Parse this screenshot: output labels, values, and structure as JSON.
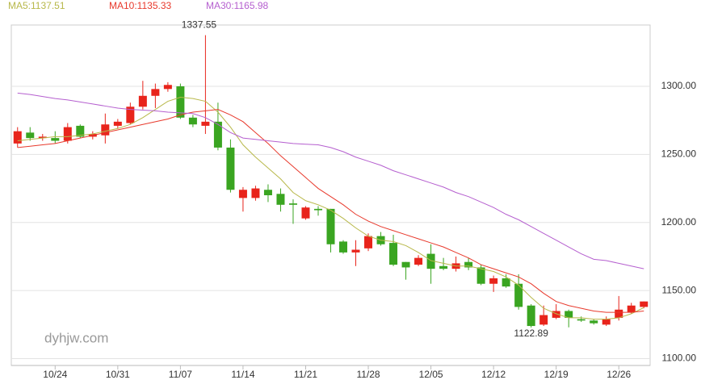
{
  "chart_data": {
    "type": "candlestick",
    "watermark": "dyhjw.com",
    "categories": [
      null,
      null,
      null,
      "10/24",
      null,
      null,
      null,
      null,
      "10/31",
      null,
      null,
      null,
      null,
      "11/07",
      null,
      null,
      null,
      null,
      "11/14",
      null,
      null,
      null,
      null,
      "11/21",
      null,
      null,
      null,
      null,
      "11/28",
      null,
      null,
      null,
      null,
      "12/05",
      null,
      null,
      null,
      null,
      "12/12",
      null,
      null,
      null,
      null,
      "12/19",
      null,
      null,
      null,
      null,
      "12/26",
      null,
      null
    ],
    "open": [
      1258,
      1266,
      1262,
      1262,
      1260,
      1271,
      1263,
      1264,
      1271,
      1273,
      1285,
      1293,
      1298,
      1300,
      1277,
      1271,
      1274,
      1255,
      1218,
      1218,
      1224,
      1221,
      1214,
      1203,
      1210,
      1210,
      1186,
      1178,
      1181,
      1190,
      1185,
      1171,
      1169,
      1177,
      1168,
      1166,
      1171,
      1167,
      1155,
      1159,
      1155,
      1139,
      1125,
      1130,
      1135,
      1129,
      1128,
      1125,
      1130,
      1134,
      1138
    ],
    "high": [
      1270,
      1270,
      1265,
      1267,
      1273,
      1272,
      1267,
      1280,
      1276,
      1288,
      1304,
      1302,
      1303,
      1302,
      1279,
      1337.55,
      1288,
      1261,
      1226,
      1227,
      1228,
      1225,
      1217,
      1212,
      1212,
      1210,
      1187,
      1187,
      1192,
      1193,
      1191,
      1171,
      1176,
      1184,
      1174,
      1175,
      1174,
      1169,
      1161,
      1162,
      1162,
      1140,
      1139,
      1140,
      1136,
      1131,
      1129,
      1131,
      1146,
      1141,
      1142
    ],
    "low": [
      1255,
      1260,
      1260,
      1258,
      1258,
      1262,
      1261,
      1258,
      1269,
      1272,
      1283,
      1284,
      1296,
      1276,
      1270,
      1265,
      1253,
      1222,
      1208,
      1216,
      1215,
      1208,
      1199,
      1202,
      1205,
      1178,
      1177,
      1168,
      1179,
      1183,
      1168,
      1158,
      1168,
      1155,
      1165,
      1164,
      1165,
      1154,
      1149,
      1152,
      1136,
      1122.89,
      1124,
      1129,
      1123,
      1127,
      1125,
      1124,
      1128,
      1133,
      1137
    ],
    "close": [
      1267,
      1262,
      1263,
      1260,
      1270,
      1263,
      1265,
      1272,
      1274,
      1285,
      1293,
      1298,
      1301,
      1277,
      1272,
      1274,
      1255,
      1224,
      1224,
      1225,
      1220,
      1213,
      1213,
      1211,
      1209,
      1184,
      1178,
      1180,
      1190,
      1184,
      1169,
      1167,
      1174,
      1166,
      1166,
      1170,
      1167,
      1155,
      1159,
      1153,
      1138,
      1124,
      1132,
      1135,
      1130,
      1128,
      1126,
      1129,
      1136,
      1139,
      1142
    ],
    "up_color": "#e8241b",
    "down_color": "#3aa521",
    "series": [
      {
        "name": "MA5:1137.51",
        "color": "#b8b84a",
        "values": [
          1260,
          1261,
          1262,
          1263,
          1263,
          1264,
          1265,
          1267,
          1269,
          1272,
          1277,
          1283,
          1289,
          1292,
          1291,
          1289,
          1281,
          1270,
          1257,
          1248,
          1240,
          1232,
          1222,
          1216,
          1213,
          1209,
          1203,
          1196,
          1190,
          1187,
          1186,
          1183,
          1178,
          1172,
          1170,
          1168,
          1168,
          1166,
          1164,
          1160,
          1154,
          1145,
          1137,
          1133,
          1130,
          1130,
          1129,
          1129,
          1130,
          1133,
          1137.5
        ]
      },
      {
        "name": "MA10:1135.33",
        "color": "#e8392c",
        "values": [
          1255,
          1256,
          1257,
          1258,
          1260,
          1262,
          1264,
          1266,
          1268,
          1270,
          1272,
          1274,
          1276,
          1279,
          1281,
          1282,
          1283,
          1279,
          1274,
          1266,
          1258,
          1249,
          1241,
          1233,
          1225,
          1219,
          1213,
          1206,
          1201,
          1197,
          1194,
          1191,
          1188,
          1185,
          1182,
          1178,
          1174,
          1169,
          1166,
          1163,
          1160,
          1155,
          1148,
          1142,
          1139,
          1137,
          1135,
          1134,
          1134,
          1134,
          1135
        ]
      },
      {
        "name": "MA30:1165.98",
        "color": "#b55fcf",
        "values": [
          1295,
          1294,
          1292.5,
          1291,
          1290,
          1288.5,
          1287,
          1285.5,
          1284,
          1283,
          1282.5,
          1282,
          1281,
          1280.5,
          1280,
          1277,
          1272,
          1266,
          1262,
          1261,
          1260,
          1259,
          1258,
          1257.5,
          1257,
          1255,
          1252,
          1248,
          1245,
          1242,
          1238,
          1235,
          1232,
          1229,
          1226,
          1222,
          1219,
          1215,
          1211,
          1206,
          1202,
          1197,
          1192,
          1187,
          1182,
          1177,
          1173,
          1172,
          1170,
          1168,
          1166
        ]
      }
    ],
    "ylim": [
      1095,
      1345
    ],
    "yticks": [
      {
        "value": 1100,
        "label": "1100.00"
      },
      {
        "value": 1150,
        "label": "1150.00"
      },
      {
        "value": 1200,
        "label": "1200.00"
      },
      {
        "value": 1250,
        "label": "1250.00"
      },
      {
        "value": 1300,
        "label": "1300.00"
      }
    ],
    "grid": true
  }
}
